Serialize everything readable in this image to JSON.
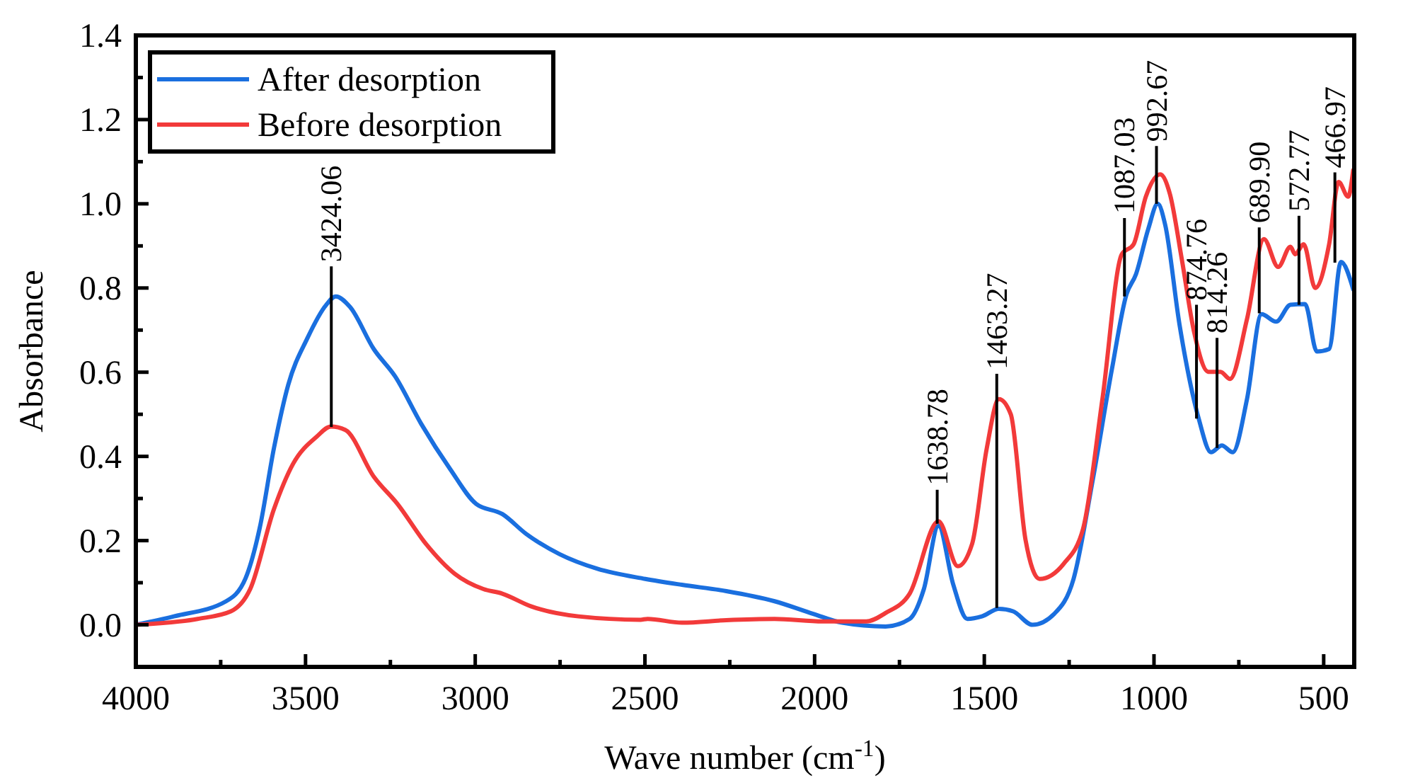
{
  "chart_data": {
    "type": "line",
    "xlabel": "Wave number (cm$^{-1}$)",
    "ylabel": "Absorbance",
    "xlim": [
      4000,
      410
    ],
    "ylim": [
      -0.1,
      1.4
    ],
    "xticks": [
      4000,
      {
        "value": 3750,
        "label": null
      },
      3500,
      {
        "value": 3250,
        "label": null
      },
      3000,
      {
        "value": 2750,
        "label": null
      },
      2500,
      {
        "value": 2250,
        "label": null
      },
      2000,
      {
        "value": 1750,
        "label": null
      },
      1500,
      {
        "value": 1250,
        "label": null
      },
      1000,
      {
        "value": 750,
        "label": null
      },
      500
    ],
    "yticks": [
      {
        "value": 0,
        "label": "0.0"
      },
      {
        "value": 0.1,
        "label": null
      },
      0.2,
      {
        "value": 0.3,
        "label": null
      },
      0.4,
      {
        "value": 0.5,
        "label": null
      },
      0.6,
      {
        "value": 0.7,
        "label": null
      },
      0.8,
      {
        "value": 0.9,
        "label": null
      },
      {
        "value": 1,
        "label": "1.0"
      },
      {
        "value": 1.1,
        "label": null
      },
      1.2,
      {
        "value": 1.3,
        "label": null
      },
      1.4
    ],
    "legend": "top left",
    "series": [
      {
        "name": "After desorption",
        "color": "#1a6fdf",
        "x": [
          4000,
          3888,
          3734,
          3677,
          3635,
          3593,
          3551,
          3495,
          3439,
          3411,
          3369,
          3299,
          3236,
          3159,
          3074,
          2997,
          2920,
          2850,
          2752,
          2640,
          2499,
          2391,
          2260,
          2118,
          2004,
          1919,
          1791,
          1720,
          1678,
          1635,
          1592,
          1550,
          1507,
          1457,
          1415,
          1358,
          1294,
          1237,
          1180,
          1124,
          1081,
          1053,
          1017,
          989,
          967,
          925,
          868,
          832,
          800,
          768,
          726,
          683,
          640,
          598,
          555,
          520,
          484,
          449,
          413
        ],
        "values": [
          0.0,
          0.02,
          0.056,
          0.11,
          0.23,
          0.42,
          0.57,
          0.68,
          0.76,
          0.78,
          0.755,
          0.655,
          0.59,
          0.477,
          0.37,
          0.287,
          0.263,
          0.216,
          0.168,
          0.133,
          0.109,
          0.095,
          0.08,
          0.056,
          0.026,
          0.005,
          -0.004,
          0.014,
          0.085,
          0.235,
          0.097,
          0.014,
          0.02,
          0.038,
          0.032,
          0.0,
          0.026,
          0.109,
          0.346,
          0.607,
          0.785,
          0.833,
          0.94,
          1.0,
          0.95,
          0.714,
          0.489,
          0.41,
          0.426,
          0.41,
          0.536,
          0.738,
          0.72,
          0.76,
          0.762,
          0.649,
          0.655,
          0.862,
          0.797
        ]
      },
      {
        "name": "Before desorption",
        "color": "#f23a3a",
        "x": [
          4000,
          3818,
          3720,
          3663,
          3593,
          3537,
          3467,
          3425,
          3383,
          3299,
          3229,
          3145,
          3060,
          2976,
          2920,
          2836,
          2696,
          2513,
          2492,
          2391,
          2260,
          2118,
          1976,
          1848,
          1791,
          1720,
          1635,
          1578,
          1536,
          1493,
          1457,
          1422,
          1379,
          1337,
          1266,
          1209,
          1152,
          1095,
          1060,
          1024,
          982,
          953,
          918,
          882,
          840,
          804,
          776,
          726,
          676,
          634,
          598,
          584,
          559,
          525,
          484,
          456,
          428,
          413
        ],
        "values": [
          0.0,
          0.014,
          0.032,
          0.085,
          0.275,
          0.382,
          0.447,
          0.471,
          0.463,
          0.352,
          0.287,
          0.192,
          0.121,
          0.085,
          0.074,
          0.044,
          0.02,
          0.012,
          0.014,
          0.005,
          0.011,
          0.014,
          0.008,
          0.008,
          0.028,
          0.074,
          0.246,
          0.139,
          0.192,
          0.418,
          0.536,
          0.5,
          0.204,
          0.109,
          0.145,
          0.228,
          0.536,
          0.88,
          0.904,
          1.017,
          1.07,
          1.023,
          0.868,
          0.696,
          0.601,
          0.601,
          0.584,
          0.726,
          0.916,
          0.85,
          0.898,
          0.88,
          0.904,
          0.8,
          0.904,
          1.052,
          1.017,
          1.08
        ]
      }
    ],
    "annotations": [
      {
        "text": "3424.06",
        "x": 3424.06,
        "y": 0.47
      },
      {
        "text": "1638.78",
        "x": 1638.78,
        "y": 0.24
      },
      {
        "text": "1463.27",
        "x": 1463.27,
        "y": 0.04
      },
      {
        "text": "1087.03",
        "x": 1087.03,
        "y": 0.78
      },
      {
        "text": "992.67",
        "x": 992.67,
        "y": 1.0
      },
      {
        "text": "874.76",
        "x": 874.76,
        "y": 0.49
      },
      {
        "text": "814.26",
        "x": 814.26,
        "y": 0.42
      },
      {
        "text": "689.90",
        "x": 689.9,
        "y": 0.74
      },
      {
        "text": "572.77",
        "x": 572.77,
        "y": 0.76
      },
      {
        "text": "466.97",
        "x": 466.97,
        "y": 0.86
      }
    ]
  }
}
